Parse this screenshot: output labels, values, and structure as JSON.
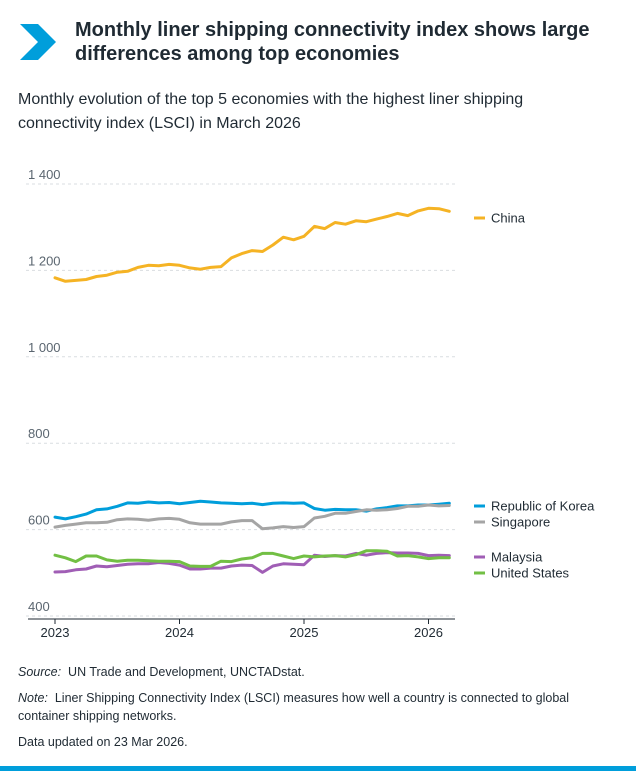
{
  "header": {
    "title": "Monthly liner shipping connectivity index shows large differences among top economies",
    "subtitle": "Monthly evolution of the top 5 economies with the highest liner shipping connectivity index (LSCI) in March 2026",
    "accent_color": "#009edb",
    "icon": "chevron-right-icon"
  },
  "footer": {
    "source_label": "Source:",
    "source_text": "UN Trade and Development,",
    "source_link": "UNCTADstat.",
    "note_label": "Note:",
    "note_text": "Liner Shipping Connectivity Index (LSCI) measures how well a country is connected to global container shipping networks.",
    "updated": "Data updated on 23 Mar 2026."
  },
  "chart_data": {
    "type": "line",
    "y_ticks": [
      "1 400",
      "1 200",
      "1 000",
      "800",
      "600",
      "400"
    ],
    "y_tick_values": [
      1400,
      1200,
      1000,
      800,
      600,
      400
    ],
    "x_ticks": [
      "2023",
      "2024",
      "2025",
      "2026"
    ],
    "ylim": [
      400,
      1400
    ],
    "grid": "horizontal dotted",
    "legend_placement": "right",
    "x_start": "2023-01",
    "x_end": "2026-03",
    "series": [
      {
        "name": "China",
        "color": "#f5b324",
        "values": [
          1162,
          1154,
          1156,
          1158,
          1165,
          1168,
          1175,
          1177,
          1186,
          1191,
          1190,
          1193,
          1191,
          1185,
          1182,
          1186,
          1188,
          1208,
          1218,
          1225,
          1223,
          1238,
          1256,
          1250,
          1258,
          1281,
          1276,
          1290,
          1286,
          1294,
          1292,
          1298,
          1304,
          1311,
          1306,
          1317,
          1323,
          1322,
          1316
        ]
      },
      {
        "name": "Republic of Korea",
        "color": "#009edb",
        "values": [
          608,
          604,
          609,
          615,
          625,
          627,
          633,
          641,
          640,
          643,
          641,
          642,
          639,
          642,
          645,
          643,
          641,
          640,
          639,
          640,
          637,
          640,
          641,
          640,
          641,
          628,
          624,
          626,
          625,
          625,
          622,
          627,
          630,
          634,
          634,
          636,
          636,
          638,
          640
        ]
      },
      {
        "name": "Singapore",
        "color": "#a5a5a5",
        "values": [
          585,
          589,
          592,
          595,
          595,
          596,
          602,
          604,
          603,
          601,
          604,
          605,
          603,
          595,
          592,
          592,
          592,
          597,
          600,
          600,
          581,
          583,
          586,
          584,
          586,
          606,
          610,
          617,
          617,
          621,
          625,
          624,
          625,
          628,
          633,
          633,
          636,
          634,
          635
        ]
      },
      {
        "name": "Malaysia",
        "color": "#a05eb5",
        "values": [
          481,
          482,
          486,
          488,
          495,
          493,
          496,
          499,
          500,
          500,
          503,
          501,
          497,
          488,
          488,
          490,
          490,
          495,
          497,
          496,
          480,
          495,
          500,
          499,
          498,
          520,
          517,
          519,
          518,
          524,
          520,
          524,
          526,
          525,
          525,
          524,
          519,
          520,
          519
        ]
      },
      {
        "name": "United States",
        "color": "#72bf44",
        "values": [
          520,
          514,
          505,
          518,
          518,
          509,
          506,
          508,
          508,
          507,
          506,
          506,
          505,
          495,
          494,
          494,
          506,
          505,
          511,
          514,
          524,
          524,
          518,
          512,
          518,
          516,
          518,
          519,
          516,
          521,
          530,
          530,
          529,
          518,
          519,
          516,
          512,
          514,
          514
        ]
      }
    ]
  }
}
